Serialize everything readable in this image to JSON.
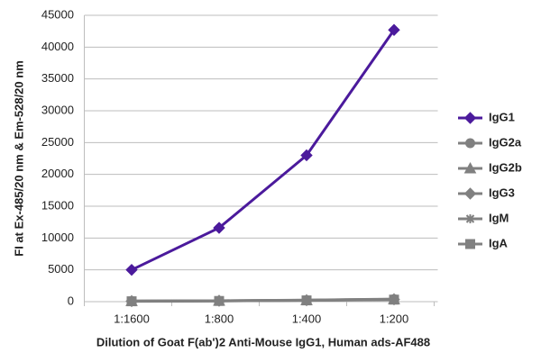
{
  "chart_data": {
    "type": "line",
    "y_label": "FI at Ex-485/20 nm & Em-528/20 nm",
    "x_label": "Dilution of Goat F(ab')2 Anti-Mouse IgG1, Human ads-AF488",
    "categories": [
      "1:1600",
      "1:800",
      "1:400",
      "1:200"
    ],
    "series": [
      {
        "name": "IgG1",
        "color": "#4b1a9c",
        "marker": "diamond",
        "values": [
          5000,
          11600,
          23000,
          42700
        ]
      },
      {
        "name": "IgG2a",
        "color": "#808080",
        "marker": "circle",
        "values": [
          100,
          150,
          250,
          400
        ]
      },
      {
        "name": "IgG2b",
        "color": "#808080",
        "marker": "triangle",
        "values": [
          90,
          140,
          230,
          380
        ]
      },
      {
        "name": "IgG3",
        "color": "#808080",
        "marker": "diamond",
        "values": [
          80,
          130,
          220,
          360
        ]
      },
      {
        "name": "IgM",
        "color": "#808080",
        "marker": "star",
        "values": [
          70,
          120,
          210,
          340
        ]
      },
      {
        "name": "IgA",
        "color": "#808080",
        "marker": "square",
        "values": [
          60,
          110,
          200,
          320
        ]
      }
    ],
    "ylim": [
      0,
      45000
    ],
    "yticks": [
      0,
      5000,
      10000,
      15000,
      20000,
      25000,
      30000,
      35000,
      40000,
      45000
    ],
    "grid": true
  }
}
